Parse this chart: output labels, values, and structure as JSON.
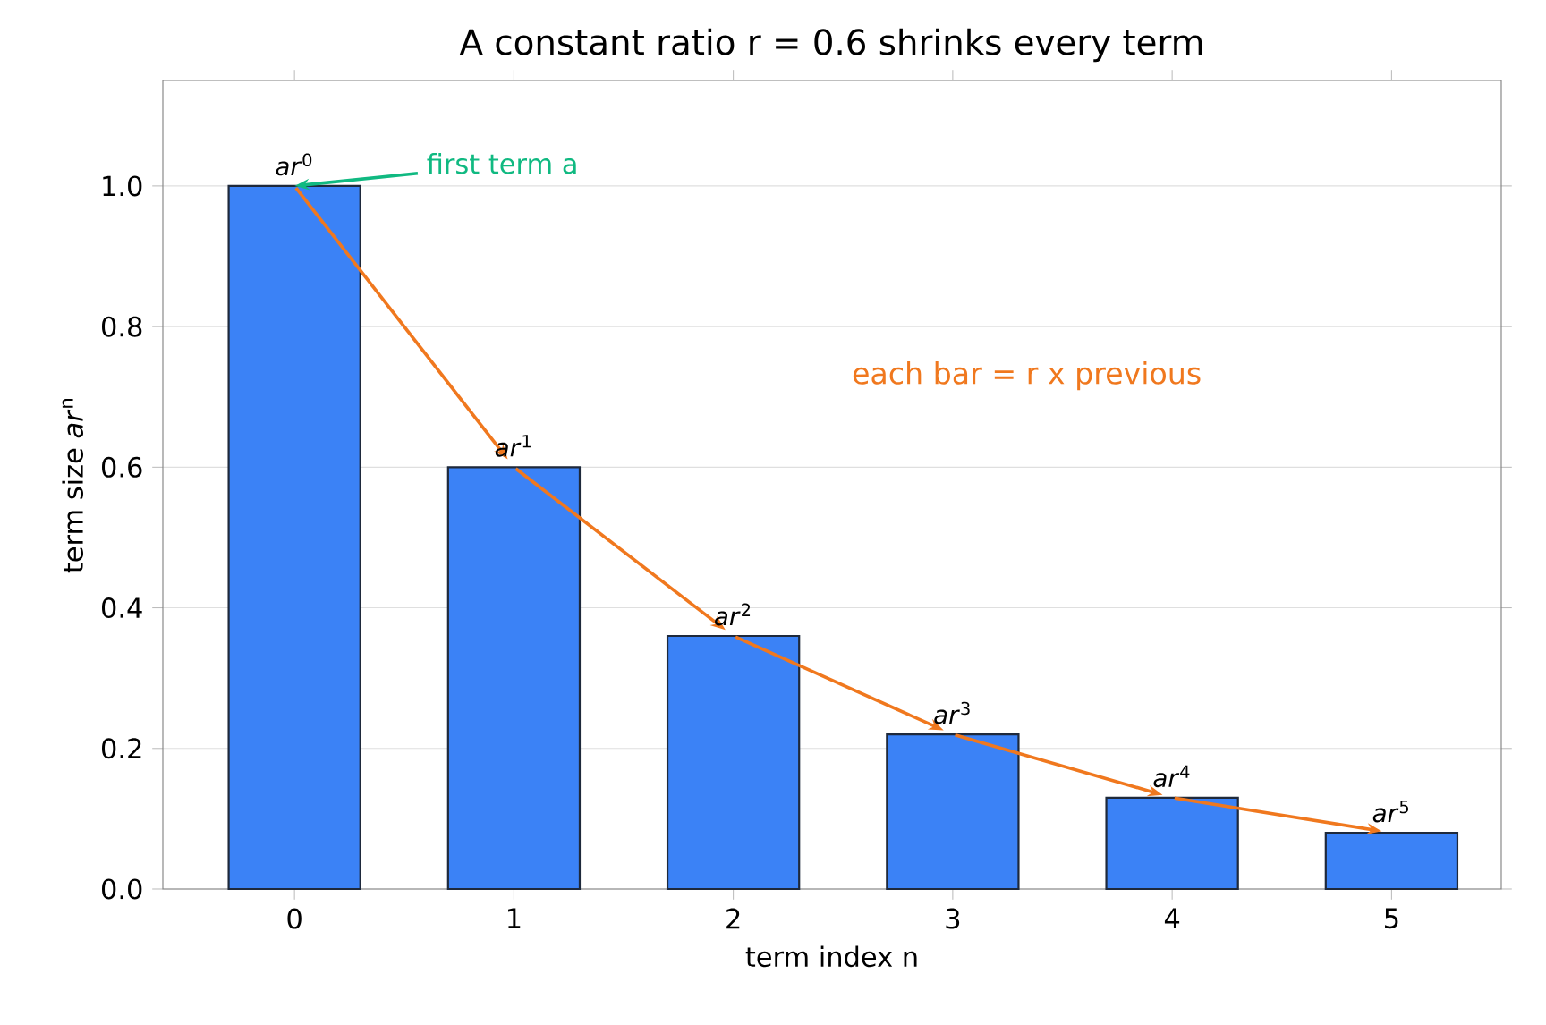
{
  "chart_data": {
    "type": "bar",
    "title": "A constant ratio r = 0.6 shrinks every term",
    "xlabel": "term index  n",
    "ylabel": "term size  *ar*$^{n}$",
    "categories": [
      "0",
      "1",
      "2",
      "3",
      "4",
      "5"
    ],
    "values": [
      1.0,
      0.6,
      0.36,
      0.22,
      0.13,
      0.08
    ],
    "color": "#3b82f6",
    "ylim": [
      0,
      1.15
    ],
    "yticks": [
      {
        "value": 0,
        "label": "0.0"
      },
      {
        "value": 0.2,
        "label": "0.2"
      },
      {
        "value": 0.4,
        "label": "0.4"
      },
      {
        "value": 0.6,
        "label": "0.6"
      },
      {
        "value": 0.8,
        "label": "0.8"
      },
      {
        "value": 1.0,
        "label": "1.0"
      }
    ],
    "grid": "y",
    "annotations": [
      {
        "text": "*ar*$^{0}$",
        "x": "0",
        "y": 1.0
      },
      {
        "text": "*ar*$^{1}$",
        "x": "1",
        "y": 0.6
      },
      {
        "text": "*ar*$^{2}$",
        "x": "2",
        "y": 0.36
      },
      {
        "text": "*ar*$^{3}$",
        "x": "3",
        "y": 0.22
      },
      {
        "text": "*ar*$^{4}$",
        "x": "4",
        "y": 0.13
      },
      {
        "text": "*ar*$^{5}$",
        "x": "5",
        "y": 0.08
      },
      {
        "text": "first term a",
        "x": "0",
        "y": 1.0
      },
      "each bar = r x previous"
    ]
  }
}
